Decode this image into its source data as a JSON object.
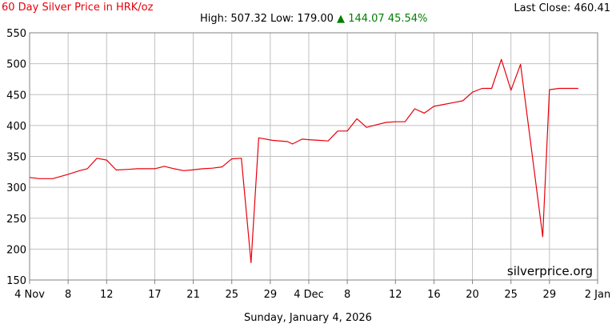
{
  "header": {
    "title": "60 Day Silver Price in HRK/oz",
    "last_close": "Last Close: 460.41",
    "high_low": "High: 507.32 Low: 179.00",
    "arrow": "▲",
    "change": "144.07 45.54%"
  },
  "footer": {
    "date": "Sunday, January 4, 2026"
  },
  "watermark": "silverprice.org",
  "colors": {
    "line": "#e8000b",
    "grid": "#c0c0c0",
    "up": "#008000",
    "title": "#e8000b"
  },
  "chart_data": {
    "type": "line",
    "grid": true,
    "ylim": [
      150,
      550
    ],
    "yticks": [
      150,
      200,
      250,
      300,
      350,
      400,
      450,
      500,
      550
    ],
    "xlim": [
      0,
      59
    ],
    "xtick_positions": [
      0,
      4,
      8,
      13,
      17,
      21,
      25,
      29,
      33,
      38,
      42,
      46,
      50,
      54,
      59
    ],
    "xtick_labels": [
      "4 Nov",
      "8",
      "12",
      "17",
      "21",
      "25",
      "29",
      "4 Dec",
      "8",
      "12",
      "16",
      "20",
      "25",
      "29",
      "2 Jan"
    ],
    "series": [
      {
        "x": [
          0,
          1,
          2.4,
          4,
          5.2,
          6,
          7,
          8,
          9,
          10.3,
          11.2,
          12,
          13,
          14,
          15,
          16,
          16.8,
          18,
          19,
          20,
          21,
          22,
          23,
          23.8,
          25.2,
          26.8,
          27.3,
          28.3,
          29,
          30,
          31,
          32,
          33,
          34,
          35,
          36,
          37,
          38,
          39,
          40,
          41,
          42,
          43,
          44,
          45,
          46,
          47,
          48,
          49,
          50,
          51,
          53.3,
          54,
          55,
          56,
          57
        ],
        "y": [
          316,
          314,
          314,
          321,
          327,
          330,
          347,
          344,
          328,
          329,
          330,
          330,
          330,
          334,
          330,
          327,
          328,
          330,
          331,
          333,
          346,
          347,
          178,
          380,
          376,
          374,
          370,
          378,
          377,
          376,
          375,
          391,
          391,
          411,
          397,
          401,
          405,
          406,
          406,
          427,
          420,
          431,
          434,
          437,
          440,
          454,
          460,
          460,
          507,
          457,
          499,
          220,
          458,
          460,
          460,
          460
        ]
      }
    ]
  }
}
